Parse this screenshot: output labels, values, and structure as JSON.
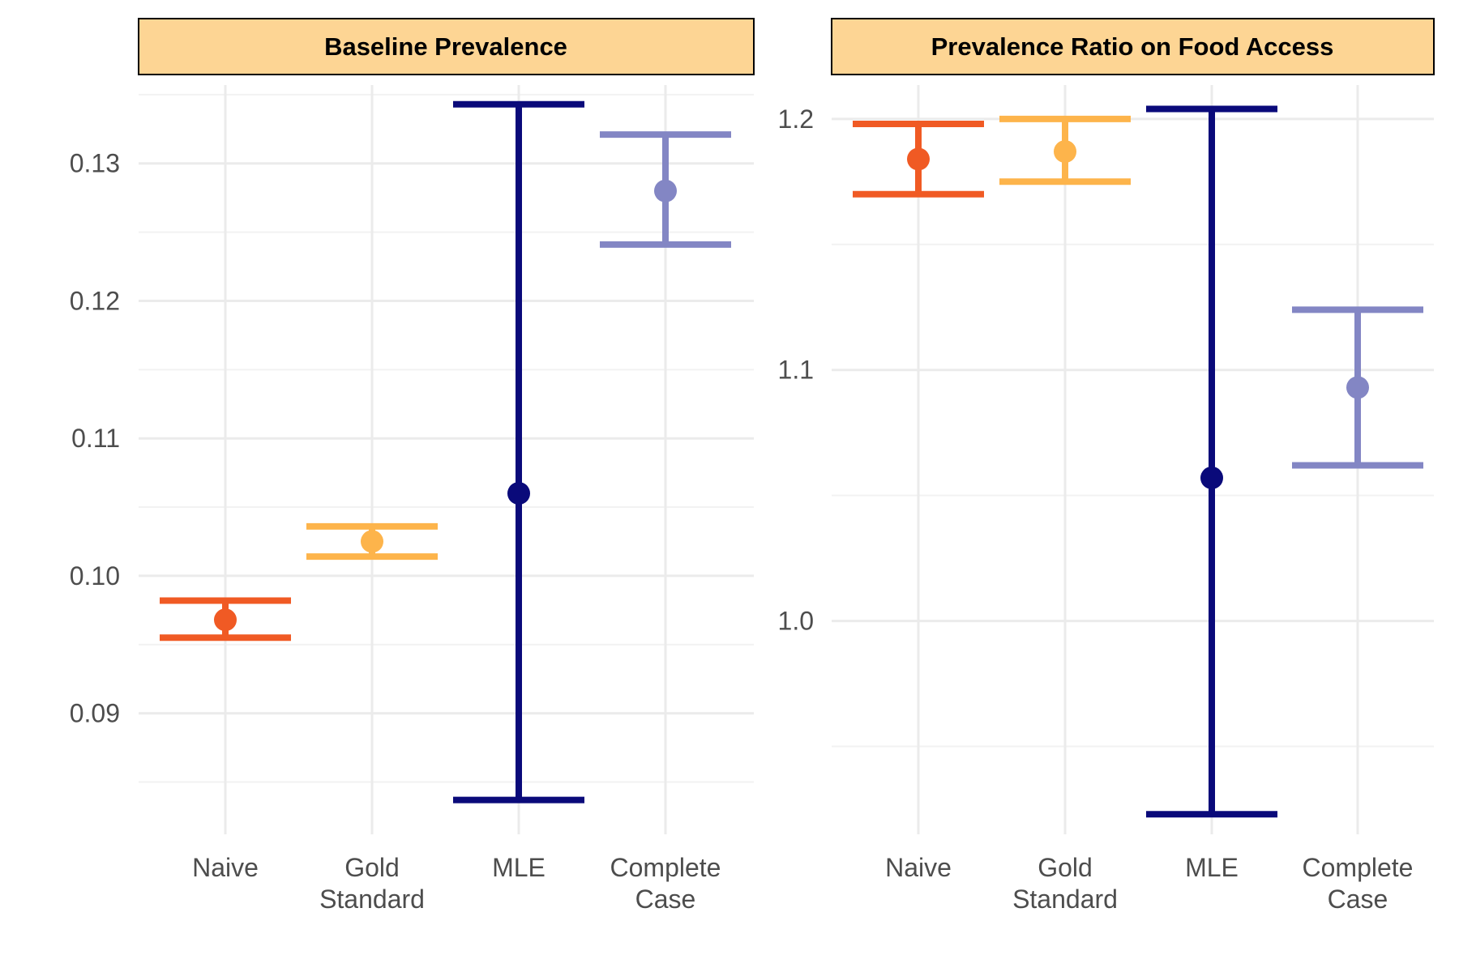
{
  "chart_data": [
    {
      "type": "errorbar",
      "title": "Baseline Prevalence",
      "xlabel": "",
      "ylabel": "",
      "categories": [
        "Naive",
        "Gold\nStandard",
        "MLE",
        "Complete\nCase"
      ],
      "ylim": [
        0.0812,
        0.1357
      ],
      "yticks": [
        0.09,
        0.1,
        0.11,
        0.12,
        0.13
      ],
      "ytick_labels": [
        "0.09",
        "0.10",
        "0.11",
        "0.12",
        "0.13"
      ],
      "points": [
        {
          "category": "Naive",
          "estimate": 0.0968,
          "lower": 0.0955,
          "upper": 0.0982,
          "color": "#F05A24"
        },
        {
          "category": "Gold\nStandard",
          "estimate": 0.1025,
          "lower": 0.1014,
          "upper": 0.1036,
          "color": "#FDB44B"
        },
        {
          "category": "MLE",
          "estimate": 0.106,
          "lower": 0.0837,
          "upper": 0.1343,
          "color": "#0A0A7A"
        },
        {
          "category": "Complete\nCase",
          "estimate": 0.128,
          "lower": 0.1241,
          "upper": 0.1321,
          "color": "#8386C4"
        }
      ],
      "grid": true,
      "strip_fill": "#FDD594"
    },
    {
      "type": "errorbar",
      "title": "Prevalence Ratio on Food Access",
      "xlabel": "",
      "ylabel": "",
      "categories": [
        "Naive",
        "Gold\nStandard",
        "MLE",
        "Complete\nCase"
      ],
      "ylim": [
        0.915,
        1.2135
      ],
      "yticks": [
        1.0,
        1.1,
        1.2
      ],
      "ytick_labels": [
        "1.0",
        "1.1",
        "1.2"
      ],
      "points": [
        {
          "category": "Naive",
          "estimate": 1.184,
          "lower": 1.17,
          "upper": 1.198,
          "color": "#F05A24"
        },
        {
          "category": "Gold\nStandard",
          "estimate": 1.187,
          "lower": 1.175,
          "upper": 1.2,
          "color": "#FDB44B"
        },
        {
          "category": "MLE",
          "estimate": 1.057,
          "lower": 0.923,
          "upper": 1.204,
          "color": "#0A0A7A"
        },
        {
          "category": "Complete\nCase",
          "estimate": 1.093,
          "lower": 1.062,
          "upper": 1.124,
          "color": "#8386C4"
        }
      ],
      "grid": true,
      "strip_fill": "#FDD594"
    }
  ]
}
